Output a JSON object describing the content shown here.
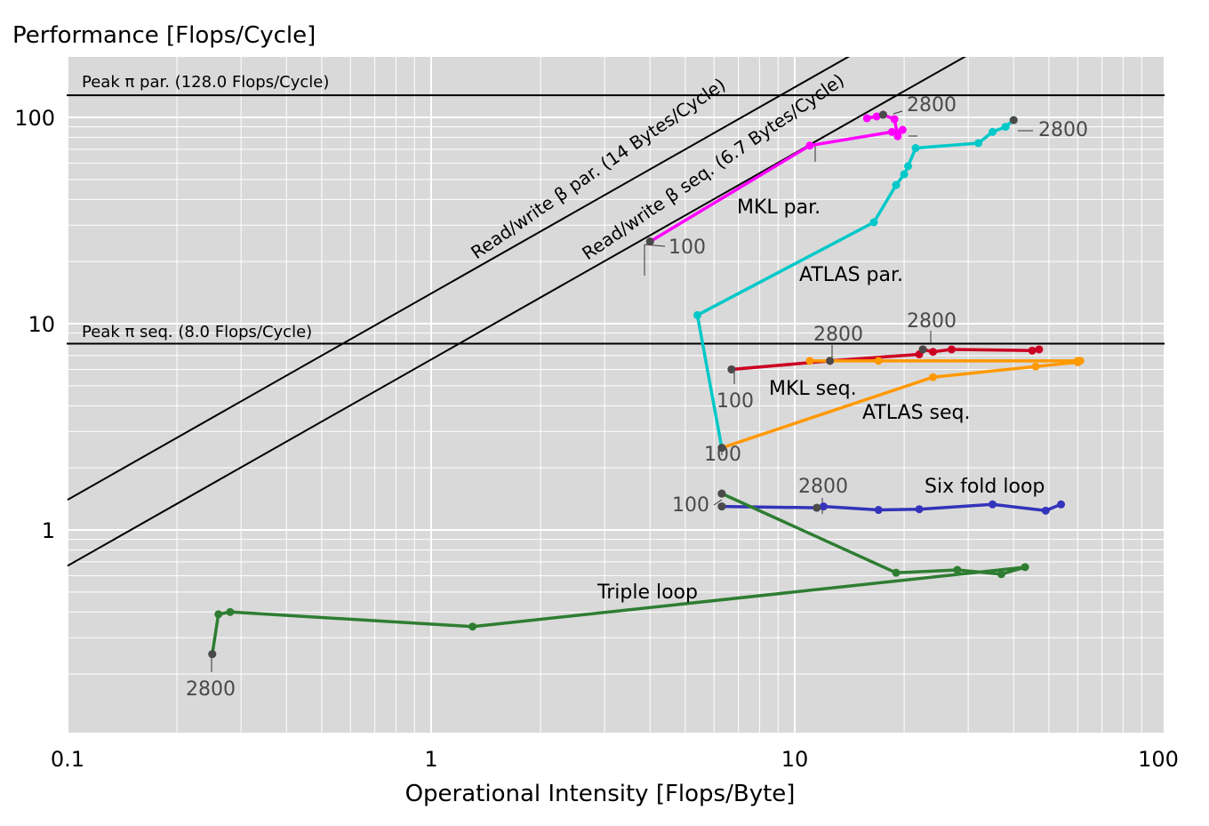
{
  "chart_data": {
    "type": "line",
    "title": "Performance [Flops/Cycle]",
    "xlabel": "Operational Intensity [Flops/Byte]",
    "ylabel": "",
    "x_scale": "log",
    "y_scale": "log",
    "xlim": [
      0.1,
      100
    ],
    "ylim": [
      0.19,
      175
    ],
    "x_ticks": [
      "0.1",
      "1",
      "10",
      "100"
    ],
    "y_ticks": [
      "1",
      "10",
      "100"
    ],
    "x_tick_values": [
      0.1,
      1,
      10,
      100
    ],
    "y_tick_values": [
      1,
      10,
      100
    ],
    "grid": true,
    "legend": "none",
    "peaks": [
      {
        "label": "Peak π par.  (128.0 Flops/Cycle)",
        "value": 128.0
      },
      {
        "label": "Peak π seq.  (8.0 Flops/Cycle)",
        "value": 8.0
      }
    ],
    "bandwidths": [
      {
        "label": "Read/write β par. (14 Bytes/Cycle)",
        "value": 14
      },
      {
        "label": "Read/write β seq. (6.7 Bytes/Cycle)",
        "value": 6.7
      }
    ],
    "series": [
      {
        "name": "MKL par.",
        "color": "#ff00ff",
        "x": [
          4.0,
          11.0,
          18.5,
          19.8,
          19.2,
          18.8,
          17.5,
          16.8,
          15.8
        ],
        "y": [
          25.0,
          73.0,
          85.0,
          87.0,
          81.0,
          98.0,
          103.0,
          101.0,
          99.0
        ]
      },
      {
        "name": "ATLAS par.",
        "color": "#00c8c8",
        "x": [
          6.3,
          5.4,
          16.5,
          19.0,
          20.0,
          20.5,
          21.5,
          32.0,
          35.0,
          38.0,
          40.0
        ],
        "y": [
          2.5,
          11.0,
          31.0,
          47.0,
          53.0,
          58.0,
          71.0,
          75.0,
          85.0,
          90.0,
          97.0
        ]
      },
      {
        "name": "MKL seq.",
        "color": "#cc0022",
        "x": [
          6.7,
          12.5,
          22.0,
          22.5,
          24.0,
          27.0,
          45.0,
          47.0
        ],
        "y": [
          6.0,
          6.6,
          7.1,
          7.5,
          7.3,
          7.5,
          7.4,
          7.5
        ]
      },
      {
        "name": "ATLAS seq.",
        "color": "#ff9900",
        "x": [
          6.3,
          24.0,
          46.0,
          60.0,
          61.0,
          60.0,
          17.0,
          12.5,
          11.0
        ],
        "y": [
          2.5,
          5.5,
          6.2,
          6.5,
          6.6,
          6.6,
          6.6,
          6.6,
          6.6
        ]
      },
      {
        "name": "Six fold loop",
        "color": "#3333bb",
        "x": [
          6.3,
          11.5,
          12.0,
          17.0,
          22.0,
          35.0,
          49.0,
          54.0
        ],
        "y": [
          1.3,
          1.28,
          1.3,
          1.25,
          1.26,
          1.33,
          1.24,
          1.33
        ]
      },
      {
        "name": "Triple loop",
        "color": "#2e7d32",
        "x": [
          6.3,
          19.0,
          28.0,
          37.0,
          43.0,
          1.3,
          0.28,
          0.26,
          0.25
        ],
        "y": [
          1.5,
          0.62,
          0.64,
          0.61,
          0.66,
          0.34,
          0.4,
          0.39,
          0.25
        ]
      }
    ],
    "series_labels": [
      "MKL par.",
      "ATLAS par.",
      "MKL seq.",
      "ATLAS seq.",
      "Six fold loop",
      "Triple loop"
    ],
    "annotations": [
      "100",
      "2800",
      "2800",
      "100",
      "2800",
      "100",
      "2800",
      "100",
      "2800",
      "2800"
    ]
  }
}
